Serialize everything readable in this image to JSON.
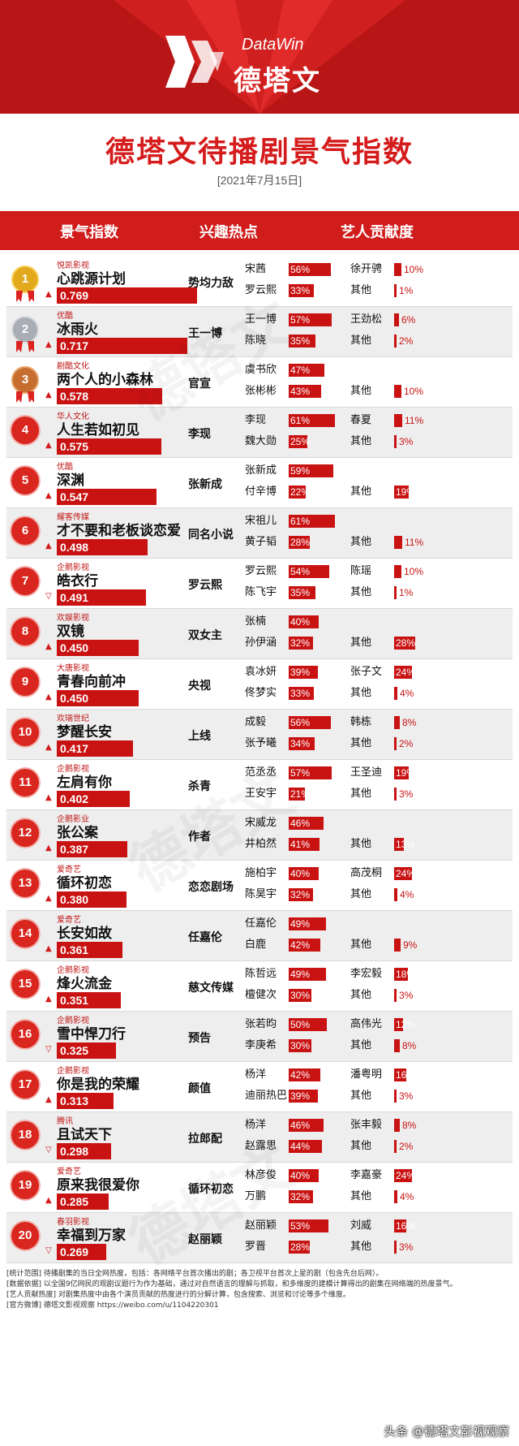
{
  "header": {
    "brand_en": "DataWin",
    "brand_cn": "德塔文"
  },
  "title": "德塔文待播剧景气指数",
  "date": "[2021年7月15日]",
  "columns": {
    "index": "景气指数",
    "hot": "兴趣热点",
    "artists": "艺人贡献度"
  },
  "colors": {
    "accent": "#c91313",
    "header_red": "#d11c1c",
    "gold": "#e3a91d",
    "silver": "#a9adb5",
    "bronze": "#c66e2f"
  },
  "chart_data": {
    "type": "table",
    "title": "德塔文待播剧景气指数",
    "rows": [
      {
        "rank": "1",
        "company": "悦凯影视",
        "name": "心跳源计划",
        "score": 0.769,
        "score_label": "0.769",
        "trend": "up",
        "hot": "势均力敌",
        "artists": [
          {
            "name": "宋茜",
            "pct": 56,
            "label": "56%"
          },
          {
            "name": "徐开骋",
            "pct": 10,
            "label": "10%"
          },
          {
            "name": "罗云熙",
            "pct": 33,
            "label": "33%"
          },
          {
            "name": "其他",
            "pct": 1,
            "label": "1%"
          }
        ]
      },
      {
        "rank": "2",
        "company": "优酷",
        "name": "冰雨火",
        "score": 0.717,
        "score_label": "0.717",
        "trend": "up",
        "hot": "王一博",
        "artists": [
          {
            "name": "王一博",
            "pct": 57,
            "label": "57%"
          },
          {
            "name": "王劲松",
            "pct": 6,
            "label": "6%"
          },
          {
            "name": "陈晓",
            "pct": 35,
            "label": "35%"
          },
          {
            "name": "其他",
            "pct": 2,
            "label": "2%"
          }
        ]
      },
      {
        "rank": "3",
        "company": "剧酷文化",
        "name": "两个人的小森林",
        "score": 0.578,
        "score_label": "0.578",
        "trend": "up",
        "hot": "官宣",
        "artists": [
          {
            "name": "虞书欣",
            "pct": 47,
            "label": "47%"
          },
          {
            "name": "",
            "pct": 0,
            "label": ""
          },
          {
            "name": "张彬彬",
            "pct": 43,
            "label": "43%"
          },
          {
            "name": "其他",
            "pct": 10,
            "label": "10%"
          }
        ]
      },
      {
        "rank": "4",
        "company": "华人文化",
        "name": "人生若如初见",
        "score": 0.575,
        "score_label": "0.575",
        "trend": "up",
        "hot": "李现",
        "artists": [
          {
            "name": "李现",
            "pct": 61,
            "label": "61%"
          },
          {
            "name": "春夏",
            "pct": 11,
            "label": "11%"
          },
          {
            "name": "魏大勋",
            "pct": 25,
            "label": "25%"
          },
          {
            "name": "其他",
            "pct": 3,
            "label": "3%"
          }
        ]
      },
      {
        "rank": "5",
        "company": "优酷",
        "name": "深渊",
        "score": 0.547,
        "score_label": "0.547",
        "trend": "up",
        "hot": "张新成",
        "artists": [
          {
            "name": "张新成",
            "pct": 59,
            "label": "59%"
          },
          {
            "name": "",
            "pct": 0,
            "label": ""
          },
          {
            "name": "付辛博",
            "pct": 22,
            "label": "22%"
          },
          {
            "name": "其他",
            "pct": 19,
            "label": "19%"
          }
        ]
      },
      {
        "rank": "6",
        "company": "耀客传媒",
        "name": "才不要和老板谈恋爱",
        "score": 0.498,
        "score_label": "0.498",
        "trend": "up",
        "hot": "同名小说",
        "artists": [
          {
            "name": "宋祖儿",
            "pct": 61,
            "label": "61%"
          },
          {
            "name": "",
            "pct": 0,
            "label": ""
          },
          {
            "name": "黄子韬",
            "pct": 28,
            "label": "28%"
          },
          {
            "name": "其他",
            "pct": 11,
            "label": "11%"
          }
        ]
      },
      {
        "rank": "7",
        "company": "企鹅影视",
        "name": "皓衣行",
        "score": 0.491,
        "score_label": "0.491",
        "trend": "down",
        "hot": "罗云熙",
        "artists": [
          {
            "name": "罗云熙",
            "pct": 54,
            "label": "54%"
          },
          {
            "name": "陈瑶",
            "pct": 10,
            "label": "10%"
          },
          {
            "name": "陈飞宇",
            "pct": 35,
            "label": "35%"
          },
          {
            "name": "其他",
            "pct": 1,
            "label": "1%"
          }
        ]
      },
      {
        "rank": "8",
        "company": "欢娱影视",
        "name": "双镜",
        "score": 0.45,
        "score_label": "0.450",
        "trend": "up",
        "hot": "双女主",
        "artists": [
          {
            "name": "张楠",
            "pct": 40,
            "label": "40%"
          },
          {
            "name": "",
            "pct": 0,
            "label": ""
          },
          {
            "name": "孙伊涵",
            "pct": 32,
            "label": "32%"
          },
          {
            "name": "其他",
            "pct": 28,
            "label": "28%"
          }
        ]
      },
      {
        "rank": "9",
        "company": "大唐影视",
        "name": "青春向前冲",
        "score": 0.45,
        "score_label": "0.450",
        "trend": "up",
        "hot": "央视",
        "artists": [
          {
            "name": "袁冰妍",
            "pct": 39,
            "label": "39%"
          },
          {
            "name": "张子文",
            "pct": 24,
            "label": "24%"
          },
          {
            "name": "佟梦实",
            "pct": 33,
            "label": "33%"
          },
          {
            "name": "其他",
            "pct": 4,
            "label": "4%"
          }
        ]
      },
      {
        "rank": "10",
        "company": "欢瑞世纪",
        "name": "梦醒长安",
        "score": 0.417,
        "score_label": "0.417",
        "trend": "up",
        "hot": "上线",
        "artists": [
          {
            "name": "成毅",
            "pct": 56,
            "label": "56%"
          },
          {
            "name": "韩栋",
            "pct": 8,
            "label": "8%"
          },
          {
            "name": "张予曦",
            "pct": 34,
            "label": "34%"
          },
          {
            "name": "其他",
            "pct": 2,
            "label": "2%"
          }
        ]
      },
      {
        "rank": "11",
        "company": "企鹅影视",
        "name": "左肩有你",
        "score": 0.402,
        "score_label": "0.402",
        "trend": "up",
        "hot": "杀青",
        "artists": [
          {
            "name": "范丞丞",
            "pct": 57,
            "label": "57%"
          },
          {
            "name": "王圣迪",
            "pct": 19,
            "label": "19%"
          },
          {
            "name": "王安宇",
            "pct": 21,
            "label": "21%"
          },
          {
            "name": "其他",
            "pct": 3,
            "label": "3%"
          }
        ]
      },
      {
        "rank": "12",
        "company": "企鹅影业",
        "name": "张公案",
        "score": 0.387,
        "score_label": "0.387",
        "trend": "up",
        "hot": "作者",
        "artists": [
          {
            "name": "宋威龙",
            "pct": 46,
            "label": "46%"
          },
          {
            "name": "",
            "pct": 0,
            "label": ""
          },
          {
            "name": "井柏然",
            "pct": 41,
            "label": "41%"
          },
          {
            "name": "其他",
            "pct": 13,
            "label": "13%"
          }
        ]
      },
      {
        "rank": "13",
        "company": "爱奇艺",
        "name": "循环初恋",
        "score": 0.38,
        "score_label": "0.380",
        "trend": "up",
        "hot": "恋恋剧场",
        "artists": [
          {
            "name": "施柏宇",
            "pct": 40,
            "label": "40%"
          },
          {
            "name": "高茂桐",
            "pct": 24,
            "label": "24%"
          },
          {
            "name": "陈昊宇",
            "pct": 32,
            "label": "32%"
          },
          {
            "name": "其他",
            "pct": 4,
            "label": "4%"
          }
        ]
      },
      {
        "rank": "14",
        "company": "爱奇艺",
        "name": "长安如故",
        "score": 0.361,
        "score_label": "0.361",
        "trend": "up",
        "hot": "任嘉伦",
        "artists": [
          {
            "name": "任嘉伦",
            "pct": 49,
            "label": "49%"
          },
          {
            "name": "",
            "pct": 0,
            "label": ""
          },
          {
            "name": "白鹿",
            "pct": 42,
            "label": "42%"
          },
          {
            "name": "其他",
            "pct": 9,
            "label": "9%"
          }
        ]
      },
      {
        "rank": "15",
        "company": "企鹅影视",
        "name": "烽火流金",
        "score": 0.351,
        "score_label": "0.351",
        "trend": "up",
        "hot": "慈文传媒",
        "artists": [
          {
            "name": "陈哲远",
            "pct": 49,
            "label": "49%"
          },
          {
            "name": "李宏毅",
            "pct": 18,
            "label": "18%"
          },
          {
            "name": "檀健次",
            "pct": 30,
            "label": "30%"
          },
          {
            "name": "其他",
            "pct": 3,
            "label": "3%"
          }
        ]
      },
      {
        "rank": "16",
        "company": "企鹅影视",
        "name": "雪中悍刀行",
        "score": 0.325,
        "score_label": "0.325",
        "trend": "down",
        "hot": "预告",
        "artists": [
          {
            "name": "张若昀",
            "pct": 50,
            "label": "50%"
          },
          {
            "name": "高伟光",
            "pct": 12,
            "label": "12%"
          },
          {
            "name": "李庚希",
            "pct": 30,
            "label": "30%"
          },
          {
            "name": "其他",
            "pct": 8,
            "label": "8%"
          }
        ]
      },
      {
        "rank": "17",
        "company": "企鹅影视",
        "name": "你是我的荣耀",
        "score": 0.313,
        "score_label": "0.313",
        "trend": "up",
        "hot": "颜值",
        "artists": [
          {
            "name": "杨洋",
            "pct": 42,
            "label": "42%"
          },
          {
            "name": "潘粤明",
            "pct": 16,
            "label": "16%"
          },
          {
            "name": "迪丽热巴",
            "pct": 39,
            "label": "39%"
          },
          {
            "name": "其他",
            "pct": 3,
            "label": "3%"
          }
        ]
      },
      {
        "rank": "18",
        "company": "腾讯",
        "name": "且试天下",
        "score": 0.298,
        "score_label": "0.298",
        "trend": "down",
        "hot": "拉郎配",
        "artists": [
          {
            "name": "杨洋",
            "pct": 46,
            "label": "46%"
          },
          {
            "name": "张丰毅",
            "pct": 8,
            "label": "8%"
          },
          {
            "name": "赵露思",
            "pct": 44,
            "label": "44%"
          },
          {
            "name": "其他",
            "pct": 2,
            "label": "2%"
          }
        ]
      },
      {
        "rank": "19",
        "company": "爱奇艺",
        "name": "原来我很爱你",
        "score": 0.285,
        "score_label": "0.285",
        "trend": "up",
        "hot": "循环初恋",
        "artists": [
          {
            "name": "林彦俊",
            "pct": 40,
            "label": "40%"
          },
          {
            "name": "李嘉豪",
            "pct": 24,
            "label": "24%"
          },
          {
            "name": "万鹏",
            "pct": 32,
            "label": "32%"
          },
          {
            "name": "其他",
            "pct": 4,
            "label": "4%"
          }
        ]
      },
      {
        "rank": "20",
        "company": "春羽影视",
        "name": "幸福到万家",
        "score": 0.269,
        "score_label": "0.269",
        "trend": "down",
        "hot": "赵丽颖",
        "artists": [
          {
            "name": "赵丽颖",
            "pct": 53,
            "label": "53%"
          },
          {
            "name": "刘威",
            "pct": 16,
            "label": "16%"
          },
          {
            "name": "罗晋",
            "pct": 28,
            "label": "28%"
          },
          {
            "name": "其他",
            "pct": 3,
            "label": "3%"
          }
        ]
      }
    ]
  },
  "footnotes": [
    "[统计范围]  待播剧集的当日全网热度，包括：各网络平台首次播出的剧；各卫视平台首次上星的剧（包含先台后网）。",
    "[数据依据]  以全国9亿网民的观剧议题行为作为基础，通过对自然语言的理解与抓取，和多维度的建模计算得出的剧集在网络端的热度景气。",
    "[艺人贡献热度]  对剧集热度中由各个演员贡献的热度进行的分解计算，包含搜索、浏览和讨论等多个维度。",
    "[官方微博]  德塔文影视观察 https://weibo.com/u/1104220301"
  ],
  "credit": "头条 @德塔文影视观察"
}
